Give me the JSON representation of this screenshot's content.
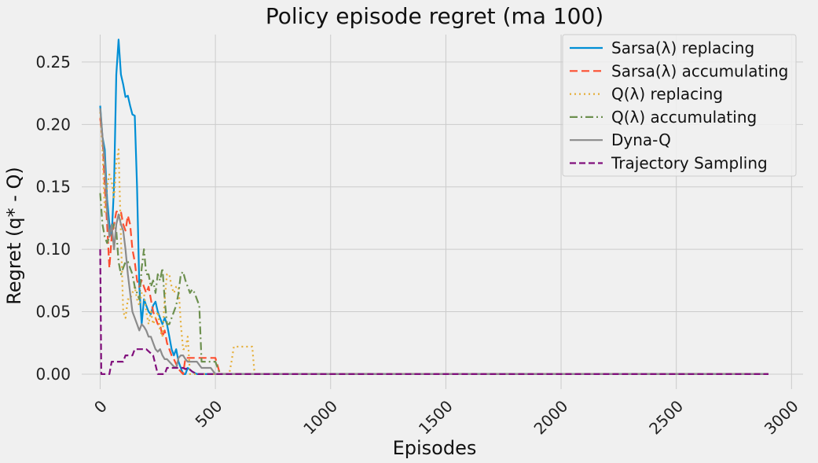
{
  "chart_data": {
    "type": "line",
    "title": "Policy episode regret (ma 100)",
    "xlabel": "Episodes",
    "ylabel": "Regret (q* - Q)",
    "xlim": [
      -80,
      3050
    ],
    "ylim": [
      -0.012,
      0.272
    ],
    "xticks": [
      0,
      500,
      1000,
      1500,
      2000,
      2500,
      3000
    ],
    "xtick_labels": [
      "0",
      "500",
      "1000",
      "1500",
      "2000",
      "2500",
      "3000"
    ],
    "yticks": [
      0.0,
      0.05,
      0.1,
      0.15,
      0.2,
      0.25
    ],
    "ytick_labels": [
      "0.00",
      "0.05",
      "0.10",
      "0.15",
      "0.20",
      "0.25"
    ],
    "grid": true,
    "legend": "top-right",
    "series": [
      {
        "name": "Sarsa(λ) replacing",
        "color": "#008fd5",
        "dash": "solid",
        "points": [
          [
            0,
            0.215
          ],
          [
            10,
            0.19
          ],
          [
            20,
            0.18
          ],
          [
            30,
            0.14
          ],
          [
            40,
            0.12
          ],
          [
            50,
            0.11
          ],
          [
            60,
            0.15
          ],
          [
            70,
            0.24
          ],
          [
            80,
            0.268
          ],
          [
            90,
            0.24
          ],
          [
            100,
            0.232
          ],
          [
            110,
            0.222
          ],
          [
            120,
            0.223
          ],
          [
            130,
            0.215
          ],
          [
            140,
            0.208
          ],
          [
            150,
            0.207
          ],
          [
            160,
            0.15
          ],
          [
            170,
            0.07
          ],
          [
            180,
            0.04
          ],
          [
            190,
            0.06
          ],
          [
            200,
            0.055
          ],
          [
            210,
            0.05
          ],
          [
            220,
            0.048
          ],
          [
            230,
            0.055
          ],
          [
            240,
            0.058
          ],
          [
            250,
            0.05
          ],
          [
            260,
            0.045
          ],
          [
            270,
            0.04
          ],
          [
            280,
            0.045
          ],
          [
            290,
            0.04
          ],
          [
            300,
            0.03
          ],
          [
            310,
            0.02
          ],
          [
            320,
            0.015
          ],
          [
            330,
            0.02
          ],
          [
            340,
            0.01
          ],
          [
            350,
            0.005
          ],
          [
            360,
            0.0
          ],
          [
            370,
            0.0
          ],
          [
            380,
            0.005
          ],
          [
            400,
            0.002
          ],
          [
            420,
            0.0
          ],
          [
            440,
            0.0
          ],
          [
            500,
            0.0
          ],
          [
            1000,
            0.0
          ],
          [
            2000,
            0.0
          ],
          [
            2900,
            0.0
          ]
        ]
      },
      {
        "name": "Sarsa(λ) accumulating",
        "color": "#fc4f30",
        "dash": "10,5",
        "points": [
          [
            0,
            0.205
          ],
          [
            10,
            0.19
          ],
          [
            20,
            0.15
          ],
          [
            30,
            0.12
          ],
          [
            40,
            0.085
          ],
          [
            50,
            0.11
          ],
          [
            60,
            0.12
          ],
          [
            70,
            0.13
          ],
          [
            80,
            0.131
          ],
          [
            90,
            0.13
          ],
          [
            100,
            0.12
          ],
          [
            110,
            0.115
          ],
          [
            120,
            0.127
          ],
          [
            130,
            0.12
          ],
          [
            140,
            0.1
          ],
          [
            150,
            0.09
          ],
          [
            160,
            0.075
          ],
          [
            170,
            0.07
          ],
          [
            180,
            0.075
          ],
          [
            190,
            0.07
          ],
          [
            200,
            0.065
          ],
          [
            210,
            0.07
          ],
          [
            220,
            0.06
          ],
          [
            230,
            0.05
          ],
          [
            240,
            0.045
          ],
          [
            250,
            0.04
          ],
          [
            260,
            0.04
          ],
          [
            270,
            0.03
          ],
          [
            280,
            0.035
          ],
          [
            290,
            0.025
          ],
          [
            300,
            0.02
          ],
          [
            310,
            0.015
          ],
          [
            320,
            0.012
          ],
          [
            330,
            0.008
          ],
          [
            340,
            0.004
          ],
          [
            350,
            0.002
          ],
          [
            360,
            0.0
          ],
          [
            370,
            0.013
          ],
          [
            400,
            0.013
          ],
          [
            450,
            0.013
          ],
          [
            500,
            0.013
          ],
          [
            520,
            0.0
          ],
          [
            700,
            0.0
          ],
          [
            1000,
            0.0
          ],
          [
            2000,
            0.0
          ],
          [
            2900,
            0.0
          ]
        ]
      },
      {
        "name": "Q(λ) replacing",
        "color": "#e5ae38",
        "dash": "2,4",
        "points": [
          [
            0,
            0.21
          ],
          [
            10,
            0.18
          ],
          [
            20,
            0.13
          ],
          [
            30,
            0.15
          ],
          [
            40,
            0.16
          ],
          [
            50,
            0.155
          ],
          [
            60,
            0.14
          ],
          [
            70,
            0.17
          ],
          [
            80,
            0.18
          ],
          [
            90,
            0.11
          ],
          [
            100,
            0.05
          ],
          [
            110,
            0.045
          ],
          [
            120,
            0.06
          ],
          [
            130,
            0.06
          ],
          [
            140,
            0.065
          ],
          [
            150,
            0.07
          ],
          [
            160,
            0.06
          ],
          [
            170,
            0.055
          ],
          [
            180,
            0.065
          ],
          [
            190,
            0.065
          ],
          [
            200,
            0.05
          ],
          [
            210,
            0.04
          ],
          [
            220,
            0.05
          ],
          [
            230,
            0.04
          ],
          [
            240,
            0.045
          ],
          [
            250,
            0.05
          ],
          [
            260,
            0.035
          ],
          [
            270,
            0.03
          ],
          [
            280,
            0.06
          ],
          [
            290,
            0.08
          ],
          [
            300,
            0.08
          ],
          [
            310,
            0.07
          ],
          [
            320,
            0.065
          ],
          [
            330,
            0.07
          ],
          [
            340,
            0.07
          ],
          [
            350,
            0.04
          ],
          [
            360,
            0.02
          ],
          [
            370,
            0.02
          ],
          [
            380,
            0.03
          ],
          [
            390,
            0.0
          ],
          [
            420,
            0.0
          ],
          [
            540,
            0.0
          ],
          [
            560,
            0.0
          ],
          [
            570,
            0.01
          ],
          [
            580,
            0.022
          ],
          [
            600,
            0.022
          ],
          [
            640,
            0.022
          ],
          [
            660,
            0.022
          ],
          [
            670,
            0.0
          ],
          [
            1000,
            0.0
          ],
          [
            2000,
            0.0
          ],
          [
            2900,
            0.0
          ]
        ]
      },
      {
        "name": "Q(λ) accumulating",
        "color": "#6d904f",
        "dash": "10,4,2,4",
        "points": [
          [
            0,
            0.145
          ],
          [
            10,
            0.12
          ],
          [
            20,
            0.11
          ],
          [
            30,
            0.105
          ],
          [
            40,
            0.11
          ],
          [
            50,
            0.115
          ],
          [
            60,
            0.12
          ],
          [
            70,
            0.115
          ],
          [
            80,
            0.09
          ],
          [
            90,
            0.08
          ],
          [
            100,
            0.085
          ],
          [
            110,
            0.09
          ],
          [
            120,
            0.09
          ],
          [
            130,
            0.085
          ],
          [
            140,
            0.08
          ],
          [
            150,
            0.07
          ],
          [
            160,
            0.065
          ],
          [
            170,
            0.06
          ],
          [
            180,
            0.085
          ],
          [
            190,
            0.1
          ],
          [
            200,
            0.08
          ],
          [
            210,
            0.08
          ],
          [
            220,
            0.07
          ],
          [
            230,
            0.075
          ],
          [
            240,
            0.065
          ],
          [
            250,
            0.08
          ],
          [
            260,
            0.075
          ],
          [
            270,
            0.085
          ],
          [
            280,
            0.06
          ],
          [
            290,
            0.04
          ],
          [
            300,
            0.04
          ],
          [
            310,
            0.045
          ],
          [
            320,
            0.05
          ],
          [
            330,
            0.055
          ],
          [
            340,
            0.065
          ],
          [
            350,
            0.08
          ],
          [
            360,
            0.082
          ],
          [
            370,
            0.075
          ],
          [
            380,
            0.07
          ],
          [
            390,
            0.065
          ],
          [
            400,
            0.068
          ],
          [
            410,
            0.065
          ],
          [
            420,
            0.06
          ],
          [
            430,
            0.055
          ],
          [
            440,
            0.01
          ],
          [
            450,
            0.01
          ],
          [
            480,
            0.01
          ],
          [
            500,
            0.01
          ],
          [
            520,
            0.0
          ],
          [
            600,
            0.0
          ],
          [
            1000,
            0.0
          ],
          [
            2000,
            0.0
          ],
          [
            2900,
            0.0
          ]
        ]
      },
      {
        "name": "Dyna-Q",
        "color": "#8b8b8b",
        "dash": "solid",
        "points": [
          [
            0,
            0.213
          ],
          [
            10,
            0.19
          ],
          [
            20,
            0.17
          ],
          [
            30,
            0.13
          ],
          [
            40,
            0.11
          ],
          [
            50,
            0.12
          ],
          [
            60,
            0.1
          ],
          [
            70,
            0.12
          ],
          [
            80,
            0.128
          ],
          [
            90,
            0.12
          ],
          [
            100,
            0.115
          ],
          [
            110,
            0.1
          ],
          [
            120,
            0.08
          ],
          [
            130,
            0.065
          ],
          [
            140,
            0.05
          ],
          [
            150,
            0.045
          ],
          [
            160,
            0.04
          ],
          [
            170,
            0.035
          ],
          [
            180,
            0.04
          ],
          [
            190,
            0.038
          ],
          [
            200,
            0.035
          ],
          [
            210,
            0.03
          ],
          [
            220,
            0.03
          ],
          [
            230,
            0.025
          ],
          [
            240,
            0.02
          ],
          [
            250,
            0.018
          ],
          [
            260,
            0.02
          ],
          [
            270,
            0.015
          ],
          [
            280,
            0.012
          ],
          [
            290,
            0.012
          ],
          [
            300,
            0.01
          ],
          [
            310,
            0.008
          ],
          [
            320,
            0.006
          ],
          [
            330,
            0.005
          ],
          [
            340,
            0.013
          ],
          [
            350,
            0.015
          ],
          [
            360,
            0.015
          ],
          [
            370,
            0.012
          ],
          [
            380,
            0.01
          ],
          [
            400,
            0.01
          ],
          [
            420,
            0.01
          ],
          [
            440,
            0.005
          ],
          [
            460,
            0.005
          ],
          [
            480,
            0.005
          ],
          [
            500,
            0.0
          ],
          [
            600,
            0.0
          ],
          [
            1000,
            0.0
          ],
          [
            2000,
            0.0
          ],
          [
            2900,
            0.0
          ]
        ]
      },
      {
        "name": "Trajectory Sampling",
        "color": "#810f7c",
        "dash": "8,4",
        "points": [
          [
            0,
            0.1
          ],
          [
            5,
            0.0
          ],
          [
            40,
            0.0
          ],
          [
            50,
            0.01
          ],
          [
            100,
            0.01
          ],
          [
            110,
            0.015
          ],
          [
            140,
            0.015
          ],
          [
            150,
            0.02
          ],
          [
            200,
            0.02
          ],
          [
            230,
            0.015
          ],
          [
            250,
            0.0
          ],
          [
            280,
            0.0
          ],
          [
            290,
            0.005
          ],
          [
            360,
            0.005
          ],
          [
            370,
            0.004
          ],
          [
            380,
            0.005
          ],
          [
            400,
            0.002
          ],
          [
            420,
            0.0
          ],
          [
            1000,
            0.0
          ],
          [
            2000,
            0.0
          ],
          [
            2900,
            0.0
          ]
        ]
      }
    ]
  }
}
